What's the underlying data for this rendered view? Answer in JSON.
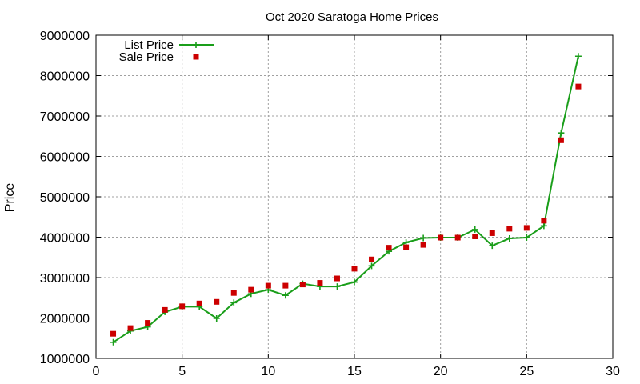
{
  "chart_data": {
    "type": "line",
    "title": "Oct 2020 Saratoga Home Prices",
    "xlabel": "",
    "ylabel": "Price",
    "xlim": [
      0,
      30
    ],
    "ylim": [
      1000000,
      9000000
    ],
    "x_ticks": [
      0,
      5,
      10,
      15,
      20,
      25,
      30
    ],
    "y_ticks": [
      1000000,
      2000000,
      3000000,
      4000000,
      5000000,
      6000000,
      7000000,
      8000000,
      9000000
    ],
    "grid": true,
    "legend_position": "top-left",
    "x": [
      1,
      2,
      3,
      4,
      5,
      6,
      7,
      8,
      9,
      10,
      11,
      12,
      13,
      14,
      15,
      16,
      17,
      18,
      19,
      20,
      21,
      22,
      23,
      24,
      25,
      26,
      27,
      28
    ],
    "series": [
      {
        "name": "List Price",
        "style": "line-plus",
        "color": "#1a9e1a",
        "values": [
          1400000,
          1680000,
          1780000,
          2150000,
          2280000,
          2280000,
          1990000,
          2380000,
          2600000,
          2700000,
          2560000,
          2850000,
          2780000,
          2780000,
          2890000,
          3290000,
          3650000,
          3870000,
          3980000,
          3990000,
          3990000,
          4190000,
          3790000,
          3970000,
          3990000,
          4280000,
          6580000,
          8480000
        ]
      },
      {
        "name": "Sale Price",
        "style": "square",
        "color": "#cc0000",
        "values": [
          1610000,
          1750000,
          1880000,
          2200000,
          2290000,
          2360000,
          2400000,
          2620000,
          2700000,
          2800000,
          2800000,
          2830000,
          2870000,
          2980000,
          3220000,
          3450000,
          3740000,
          3750000,
          3810000,
          3990000,
          3990000,
          4020000,
          4100000,
          4210000,
          4230000,
          4410000,
          6400000,
          7730000
        ]
      }
    ]
  }
}
